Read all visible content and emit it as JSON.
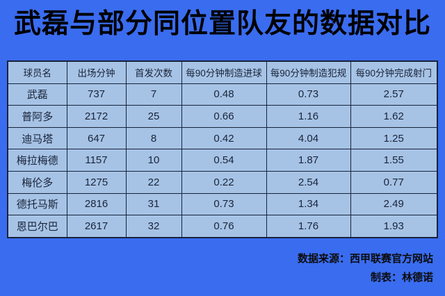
{
  "title": "武磊与部分同位置队友的数据对比",
  "chart_data": {
    "type": "table",
    "title": "武磊与部分同位置队友的数据对比",
    "columns": [
      "球员名",
      "出场分钟",
      "首发次数",
      "每90分钟制造进球",
      "每90分钟制造犯规",
      "每90分钟完成射门"
    ],
    "rows": [
      [
        "武磊",
        737,
        7,
        0.48,
        0.73,
        2.57
      ],
      [
        "普阿多",
        2172,
        25,
        0.66,
        1.16,
        1.62
      ],
      [
        "迪马塔",
        647,
        8,
        0.42,
        4.04,
        1.25
      ],
      [
        "梅拉梅德",
        1157,
        10,
        0.54,
        1.87,
        1.55
      ],
      [
        "梅伦多",
        1275,
        22,
        0.22,
        2.54,
        0.77
      ],
      [
        "德托马斯",
        2816,
        31,
        0.73,
        1.34,
        2.49
      ],
      [
        "恩巴尔巴",
        2617,
        32,
        0.76,
        1.76,
        1.93
      ]
    ]
  },
  "footer": {
    "source": "数据来源：西甲联赛官方网站",
    "credit": "制表：林德诺"
  },
  "colors": {
    "background": "#3a6cf0",
    "cell_fill": "#a6c3e6",
    "border": "#17233a",
    "cell_text": "#1a2438",
    "title_text": "#000000",
    "footer_text": "#0c0c0c"
  }
}
